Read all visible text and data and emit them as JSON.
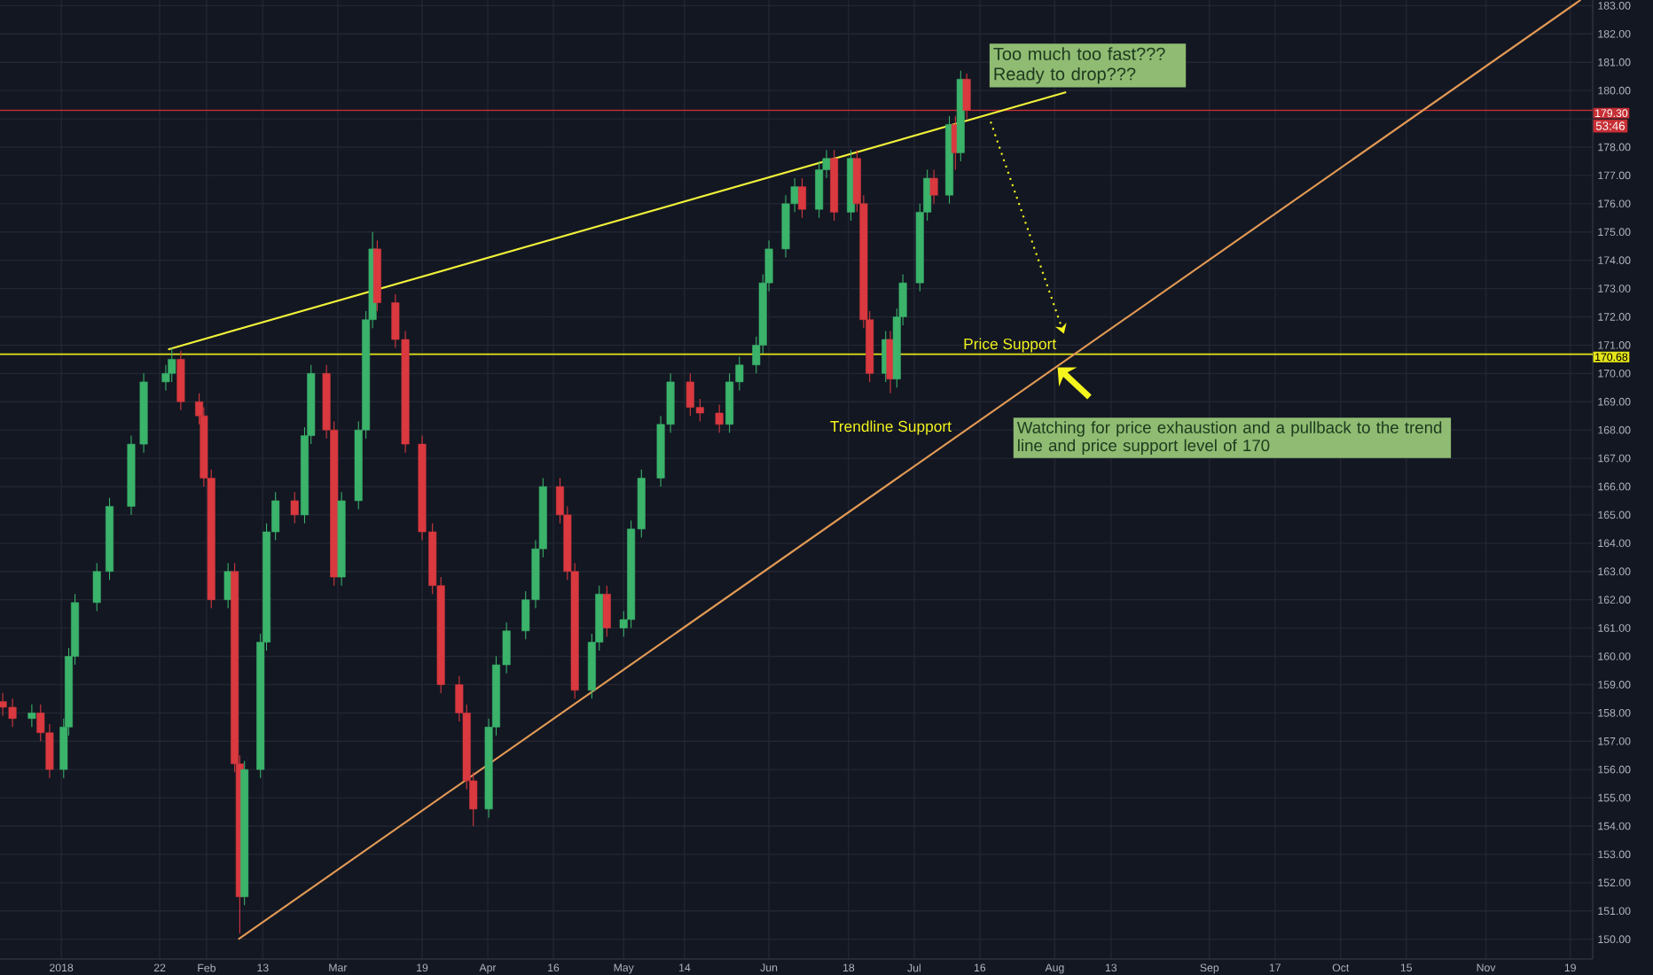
{
  "chart_data": {
    "type": "candlestick",
    "x": [
      "2017-12-19T12:00",
      "2017-12-21T14:00",
      "2017-12-25T17:00",
      "2017-12-27T14:00",
      "2017-12-29T12:00",
      "2018-01-01T12:00",
      "2018-01-02T14:00",
      "2018-01-03T22:00",
      "2018-01-08T14:00",
      "2018-01-11T07:00",
      "2018-01-15T22:00",
      "2018-01-18T14:00",
      "2018-01-23T07:00",
      "2018-01-24T14:00",
      "2018-01-26T12:00",
      "2018-01-30T10:00",
      "2018-01-31T10:00",
      "2018-02-02T00:00",
      "2018-02-05T14:00",
      "2018-02-07T00:00",
      "2018-02-08T02:00",
      "2018-02-09T02:00",
      "2018-02-12T12:00",
      "2018-02-13T19:00",
      "2018-02-15T17:00",
      "2018-02-19T19:00",
      "2018-02-21T22:00",
      "2018-02-23T07:00",
      "2018-02-26T14:00",
      "2018-02-28T05:00",
      "2018-03-01T19:00",
      "2018-03-05T10:00",
      "2018-03-07T00:00",
      "2018-03-08T10:00",
      "2018-03-09T10:00",
      "2018-03-13T07:00",
      "2018-03-15T10:00",
      "2018-03-19T00:00",
      "2018-03-21T05:00",
      "2018-03-23T00:00",
      "2018-03-26T22:00",
      "2018-03-28T12:00",
      "2018-03-29T22:00",
      "2018-04-02T05:00",
      "2018-04-03T19:00",
      "2018-04-06T00:00",
      "2018-04-10T02:00",
      "2018-04-12T05:00",
      "2018-04-13T19:00",
      "2018-04-17T10:00",
      "2018-04-19T00:00",
      "2018-04-20T14:00",
      "2018-04-24T05:00",
      "2018-04-25T19:00",
      "2018-04-27T10:00",
      "2018-05-01T00:00",
      "2018-05-02T14:00",
      "2018-05-04T19:00",
      "2018-05-08T22:00",
      "2018-05-11T00:00",
      "2018-05-15T05:00",
      "2018-05-17T07:00",
      "2018-05-21T10:00",
      "2018-05-23T14:00",
      "2018-05-25T17:00",
      "2018-05-29T07:00",
      "2018-05-30T17:00",
      "2018-06-01T00:00",
      "2018-06-04T14:00",
      "2018-06-06T12:00",
      "2018-06-08T02:00",
      "2018-06-11T17:00",
      "2018-06-13T07:00",
      "2018-06-14T22:00",
      "2018-06-18T12:00",
      "2018-06-19T19:00",
      "2018-06-21T05:00",
      "2018-06-22T12:00",
      "2018-06-25T22:00",
      "2018-06-26T22:00",
      "2018-06-28T07:00",
      "2018-06-29T14:00",
      "2018-07-03T05:00",
      "2018-07-04T19:00",
      "2018-07-06T05:00",
      "2018-07-09T12:00",
      "2018-07-10T19:00",
      "2018-07-11T22:00",
      "2018-07-13T05:00"
    ],
    "ohlc": [
      [
        158.4,
        158.7,
        157.9,
        158.2
      ],
      [
        158.2,
        158.5,
        157.5,
        157.8
      ],
      [
        157.8,
        158.3,
        157.5,
        158.0
      ],
      [
        158.0,
        158.3,
        157.0,
        157.3
      ],
      [
        157.3,
        157.6,
        155.7,
        156.0
      ],
      [
        156.0,
        157.8,
        155.7,
        157.5
      ],
      [
        157.5,
        160.3,
        157.2,
        160.0
      ],
      [
        160.0,
        162.2,
        159.7,
        161.9
      ],
      [
        161.9,
        163.3,
        161.6,
        163.0
      ],
      [
        163.0,
        165.6,
        162.7,
        165.3
      ],
      [
        165.3,
        167.8,
        165.0,
        167.5
      ],
      [
        167.5,
        170.0,
        167.2,
        169.7
      ],
      [
        169.7,
        170.3,
        169.4,
        170.0
      ],
      [
        170.0,
        170.9,
        169.7,
        170.5
      ],
      [
        170.5,
        170.8,
        168.7,
        169.0
      ],
      [
        169.0,
        169.3,
        168.2,
        168.5
      ],
      [
        168.5,
        168.8,
        166.0,
        166.3
      ],
      [
        166.3,
        166.6,
        161.7,
        162.0
      ],
      [
        162.0,
        163.3,
        161.7,
        163.0
      ],
      [
        163.0,
        163.3,
        155.9,
        156.2
      ],
      [
        156.2,
        156.5,
        150.2,
        151.5
      ],
      [
        151.5,
        156.3,
        151.2,
        156.0
      ],
      [
        156.0,
        160.8,
        155.7,
        160.5
      ],
      [
        160.5,
        164.7,
        160.2,
        164.4
      ],
      [
        164.4,
        165.8,
        164.1,
        165.5
      ],
      [
        165.5,
        165.8,
        164.7,
        165.0
      ],
      [
        165.0,
        168.1,
        164.7,
        167.8
      ],
      [
        167.8,
        170.3,
        167.5,
        170.0
      ],
      [
        170.0,
        170.3,
        167.7,
        168.0
      ],
      [
        168.0,
        168.3,
        162.5,
        162.8
      ],
      [
        162.8,
        165.8,
        162.5,
        165.5
      ],
      [
        165.5,
        168.3,
        165.2,
        168.0
      ],
      [
        168.0,
        172.2,
        167.7,
        171.9
      ],
      [
        171.9,
        175.0,
        171.6,
        174.4
      ],
      [
        174.4,
        174.7,
        172.2,
        172.5
      ],
      [
        172.5,
        172.8,
        170.9,
        171.2
      ],
      [
        171.2,
        171.5,
        167.2,
        167.5
      ],
      [
        167.5,
        167.8,
        164.1,
        164.4
      ],
      [
        164.4,
        164.7,
        162.2,
        162.5
      ],
      [
        162.5,
        162.8,
        158.7,
        159.0
      ],
      [
        159.0,
        159.3,
        157.7,
        158.0
      ],
      [
        158.0,
        158.3,
        155.3,
        155.6
      ],
      [
        155.6,
        155.9,
        154.0,
        154.6
      ],
      [
        154.6,
        157.8,
        154.3,
        157.5
      ],
      [
        157.5,
        160.0,
        157.2,
        159.7
      ],
      [
        159.7,
        161.2,
        159.4,
        160.9
      ],
      [
        160.9,
        162.3,
        160.6,
        162.0
      ],
      [
        162.0,
        164.1,
        161.7,
        163.8
      ],
      [
        163.8,
        166.3,
        163.5,
        166.0
      ],
      [
        166.0,
        166.3,
        164.7,
        165.0
      ],
      [
        165.0,
        165.3,
        162.7,
        163.0
      ],
      [
        163.0,
        163.3,
        158.5,
        158.8
      ],
      [
        158.8,
        160.8,
        158.5,
        160.5
      ],
      [
        160.5,
        162.5,
        160.2,
        162.2
      ],
      [
        162.2,
        162.5,
        160.7,
        161.0
      ],
      [
        161.0,
        161.6,
        160.7,
        161.3
      ],
      [
        161.3,
        164.8,
        161.0,
        164.5
      ],
      [
        164.5,
        166.6,
        164.2,
        166.3
      ],
      [
        166.3,
        168.5,
        166.0,
        168.2
      ],
      [
        168.2,
        170.0,
        167.9,
        169.7
      ],
      [
        169.7,
        170.0,
        168.5,
        168.8
      ],
      [
        168.8,
        169.1,
        168.3,
        168.6
      ],
      [
        168.6,
        168.9,
        167.9,
        168.2
      ],
      [
        168.2,
        170.0,
        167.9,
        169.7
      ],
      [
        169.7,
        170.6,
        169.4,
        170.3
      ],
      [
        170.3,
        171.3,
        170.0,
        171.0
      ],
      [
        171.0,
        173.5,
        170.7,
        173.2
      ],
      [
        173.2,
        174.7,
        172.9,
        174.4
      ],
      [
        174.4,
        176.3,
        174.1,
        176.0
      ],
      [
        176.0,
        176.9,
        175.7,
        176.6
      ],
      [
        176.6,
        176.9,
        175.5,
        175.8
      ],
      [
        175.8,
        177.5,
        175.5,
        177.2
      ],
      [
        177.2,
        177.9,
        176.9,
        177.6
      ],
      [
        177.6,
        177.9,
        175.4,
        175.7
      ],
      [
        175.7,
        177.9,
        175.4,
        177.6
      ],
      [
        177.6,
        177.9,
        175.7,
        176.0
      ],
      [
        176.0,
        176.3,
        171.6,
        171.9
      ],
      [
        171.9,
        172.2,
        169.7,
        170.0
      ],
      [
        170.0,
        171.5,
        169.7,
        171.2
      ],
      [
        171.2,
        171.5,
        169.3,
        169.8
      ],
      [
        169.8,
        172.3,
        169.5,
        172.0
      ],
      [
        172.0,
        173.5,
        171.7,
        173.2
      ],
      [
        173.2,
        176.0,
        172.9,
        175.7
      ],
      [
        175.7,
        177.2,
        175.4,
        176.9
      ],
      [
        176.9,
        177.2,
        176.0,
        176.3
      ],
      [
        176.3,
        179.1,
        176.0,
        178.8
      ],
      [
        178.8,
        179.1,
        177.2,
        177.8
      ],
      [
        177.8,
        180.7,
        177.5,
        180.4
      ],
      [
        180.4,
        180.6,
        179.0,
        179.3
      ]
    ],
    "series": [
      {
        "type": "line",
        "x": [
          "2018-01-23T19:00",
          "2018-08-03T10:00"
        ],
        "values": [
          170.85,
          179.94
        ],
        "color": "#f2f23a"
      },
      {
        "type": "line",
        "x": [
          "2018-02-07T19:00",
          "2018-11-21T05:00"
        ],
        "values": [
          150.0,
          183.2
        ],
        "color": "#e39a55"
      }
    ],
    "ref_lines": [
      {
        "axis": "y",
        "value": 179.3,
        "label": "179.30",
        "color": "#c62f35"
      },
      {
        "axis": "y",
        "value": 170.68,
        "label": "170.68",
        "color": "#e5e51a"
      }
    ],
    "annotations": [
      "Too much too fast??? Ready to drop???",
      "Price Support",
      {
        "text": "Trendline Support",
        "x": "2018-06-27",
        "y": 169.3
      },
      "Watching for price exhaustion and a pullback to the trend line and price support level of 170",
      "53:46"
    ],
    "xlim": [
      "2017-12-18T22:00",
      "2018-11-23T19:00"
    ],
    "ylim": [
      149.3,
      183.2
    ],
    "xticks": [
      {
        "value": "2018-01-01",
        "label": "2018"
      },
      {
        "value": "2018-01-22",
        "label": "22"
      },
      {
        "value": "2018-02-01",
        "label": "Feb"
      },
      {
        "value": "2018-02-13",
        "label": "13"
      },
      {
        "value": "2018-03-01",
        "label": "Mar"
      },
      {
        "value": "2018-03-19",
        "label": "19"
      },
      {
        "value": "2018-04-02",
        "label": "Apr"
      },
      {
        "value": "2018-04-16",
        "label": "16"
      },
      {
        "value": "2018-05-01",
        "label": "May"
      },
      {
        "value": "2018-05-14",
        "label": "14"
      },
      {
        "value": "2018-06-01",
        "label": "Jun"
      },
      {
        "value": "2018-06-18",
        "label": "18"
      },
      {
        "value": "2018-07-02",
        "label": "Jul"
      },
      {
        "value": "2018-07-16",
        "label": "16"
      },
      {
        "value": "2018-08-01",
        "label": "Aug"
      },
      {
        "value": "2018-08-13",
        "label": "13"
      },
      {
        "value": "2018-09-03",
        "label": "Sep"
      },
      {
        "value": "2018-09-17",
        "label": "17"
      },
      {
        "value": "2018-10-01",
        "label": "Oct"
      },
      {
        "value": "2018-10-15",
        "label": "15"
      },
      {
        "value": "2018-11-01",
        "label": "Nov"
      },
      {
        "value": "2018-11-19",
        "label": "19"
      }
    ],
    "yticks": [
      {
        "value": 150,
        "label": "150.00"
      },
      {
        "value": 151,
        "label": "151.00"
      },
      {
        "value": 152,
        "label": "152.00"
      },
      {
        "value": 153,
        "label": "153.00"
      },
      {
        "value": 154,
        "label": "154.00"
      },
      {
        "value": 155,
        "label": "155.00"
      },
      {
        "value": 156,
        "label": "156.00"
      },
      {
        "value": 157,
        "label": "157.00"
      },
      {
        "value": 158,
        "label": "158.00"
      },
      {
        "value": 159,
        "label": "159.00"
      },
      {
        "value": 160,
        "label": "160.00"
      },
      {
        "value": 161,
        "label": "161.00"
      },
      {
        "value": 162,
        "label": "162.00"
      },
      {
        "value": 163,
        "label": "163.00"
      },
      {
        "value": 164,
        "label": "164.00"
      },
      {
        "value": 165,
        "label": "165.00"
      },
      {
        "value": 166,
        "label": "166.00"
      },
      {
        "value": 167,
        "label": "167.00"
      },
      {
        "value": 168,
        "label": "168.00"
      },
      {
        "value": 169,
        "label": "169.00"
      },
      {
        "value": 170,
        "label": "170.00"
      },
      {
        "value": 171,
        "label": "171.00"
      },
      {
        "value": 172,
        "label": "172.00"
      },
      {
        "value": 173,
        "label": "173.00"
      },
      {
        "value": 174,
        "label": "174.00"
      },
      {
        "value": 175,
        "label": "175.00"
      },
      {
        "value": 176,
        "label": "176.00"
      },
      {
        "value": 177,
        "label": "177.00"
      },
      {
        "value": 178,
        "label": "178.00"
      },
      {
        "value": 179,
        "label": null
      },
      {
        "value": 180,
        "label": "180.00"
      },
      {
        "value": 181,
        "label": "181.00"
      },
      {
        "value": 182,
        "label": "182.00"
      },
      {
        "value": 183,
        "label": "183.00"
      }
    ],
    "grid": true
  }
}
